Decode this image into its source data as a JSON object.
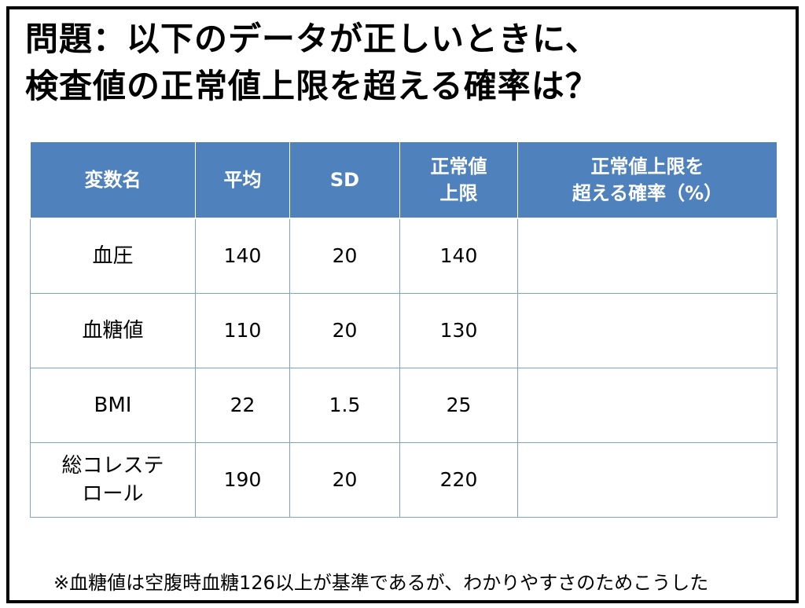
{
  "title": {
    "line1": "問題：以下のデータが正しいときに、",
    "line2": "検査値の正常値上限を超える確率は？"
  },
  "table": {
    "headers": [
      {
        "lines": [
          "変数名"
        ]
      },
      {
        "lines": [
          "平均"
        ]
      },
      {
        "lines": [
          "SD"
        ]
      },
      {
        "lines": [
          "正常値",
          "上限"
        ]
      },
      {
        "lines": [
          "正常値上限を",
          "超える確率（%）"
        ]
      }
    ],
    "rows": [
      {
        "name_lines": [
          "血圧"
        ],
        "mean": "140",
        "sd": "20",
        "upper_limit": "140",
        "probability": ""
      },
      {
        "name_lines": [
          "血糖値"
        ],
        "mean": "110",
        "sd": "20",
        "upper_limit": "130",
        "probability": ""
      },
      {
        "name_lines": [
          "BMI"
        ],
        "mean": "22",
        "sd": "1.5",
        "upper_limit": "25",
        "probability": ""
      },
      {
        "name_lines": [
          "総コレステ",
          "ロール"
        ],
        "mean": "190",
        "sd": "20",
        "upper_limit": "220",
        "probability": ""
      }
    ]
  },
  "footnote": "※血糖値は空腹時血糖126以上が基準であるが、わかりやすさのためこうした",
  "colors": {
    "header_bg": "#4f81bd",
    "header_text": "#ffffff",
    "cell_border": "#7ea3cc",
    "frame_border": "#000000"
  }
}
